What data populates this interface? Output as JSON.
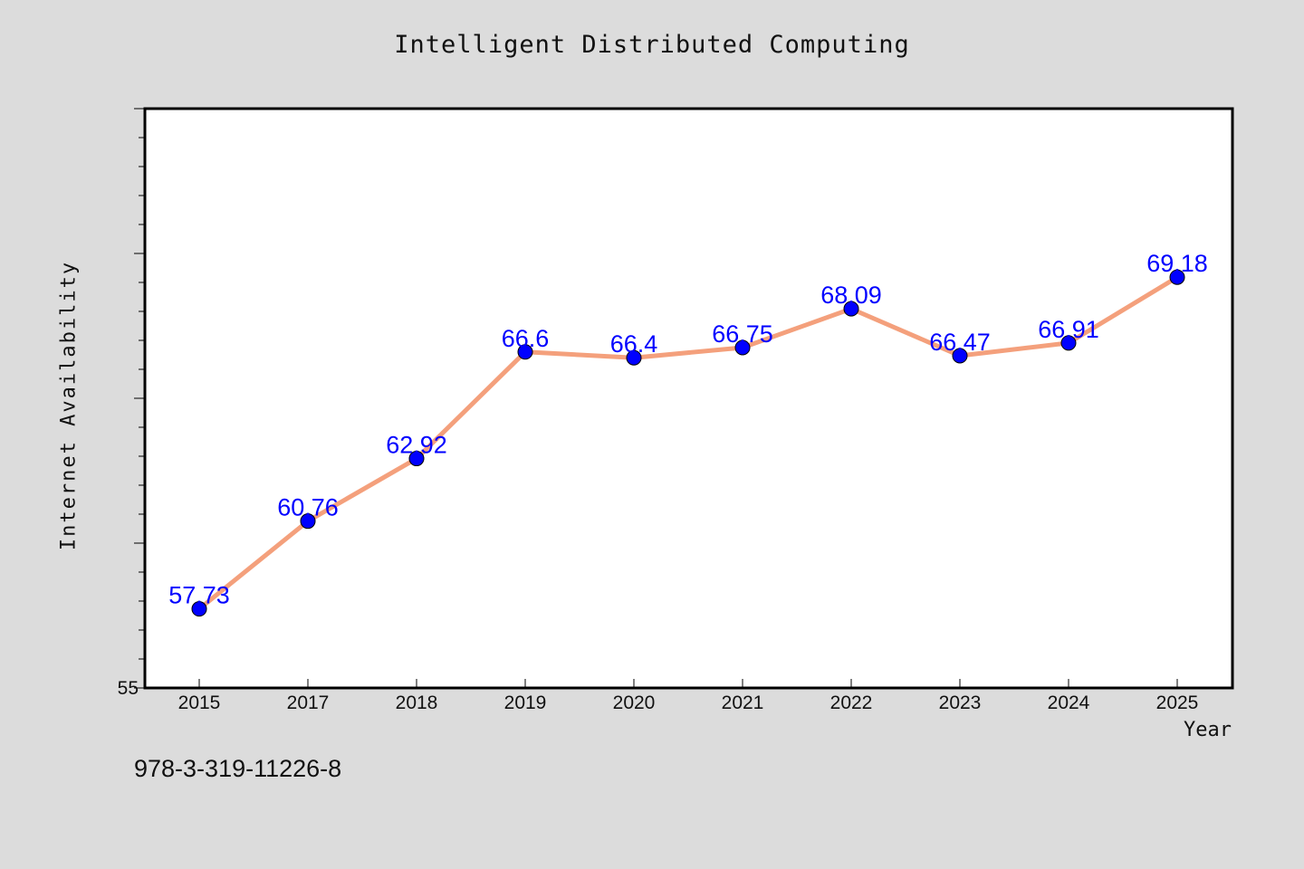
{
  "chart_data": {
    "type": "line",
    "title": "Intelligent Distributed Computing",
    "xlabel": "Year",
    "ylabel": "Internet Availability",
    "categories": [
      "2015",
      "2017",
      "2018",
      "2019",
      "2020",
      "2021",
      "2022",
      "2023",
      "2024",
      "2025"
    ],
    "values": [
      57.73,
      60.76,
      62.92,
      66.6,
      66.4,
      66.75,
      68.09,
      66.47,
      66.91,
      69.18
    ],
    "data_labels": [
      "57.73",
      "60.76",
      "62.92",
      "66.6",
      "66.4",
      "66.75",
      "68.09",
      "66.47",
      "66.91",
      "69.18"
    ],
    "ylim": [
      55,
      75
    ],
    "yticks_labeled": [
      "55"
    ],
    "grid": false,
    "legend": "none",
    "line_color": "#f4a07c",
    "marker_color": "#0000ff",
    "label_color": "#0000ff"
  },
  "annotation": "978-3-319-11226-8"
}
